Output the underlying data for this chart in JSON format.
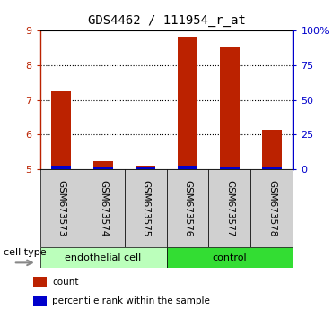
{
  "title": "GDS4462 / 111954_r_at",
  "samples": [
    "GSM673573",
    "GSM673574",
    "GSM673575",
    "GSM673576",
    "GSM673577",
    "GSM673578"
  ],
  "count_values": [
    7.25,
    5.25,
    5.1,
    8.8,
    8.5,
    6.15
  ],
  "percentile_values": [
    0.1,
    0.07,
    0.05,
    0.12,
    0.08,
    0.07
  ],
  "ylim_left": [
    5,
    9
  ],
  "ylim_right": [
    0,
    100
  ],
  "yticks_left": [
    5,
    6,
    7,
    8,
    9
  ],
  "yticks_right": [
    0,
    25,
    50,
    75,
    100
  ],
  "ytick_labels_right": [
    "0",
    "25",
    "50",
    "75",
    "100%"
  ],
  "bar_base": 5,
  "red_color": "#bb2200",
  "blue_color": "#0000cc",
  "cell_types": [
    {
      "label": "endothelial cell",
      "indices": [
        0,
        1,
        2
      ],
      "color": "#bbffbb"
    },
    {
      "label": "control",
      "indices": [
        3,
        4,
        5
      ],
      "color": "#33dd33"
    }
  ],
  "cell_type_label": "cell type",
  "legend_items": [
    {
      "color": "#bb2200",
      "label": "count"
    },
    {
      "color": "#0000cc",
      "label": "percentile rank within the sample"
    }
  ],
  "bar_width": 0.45
}
